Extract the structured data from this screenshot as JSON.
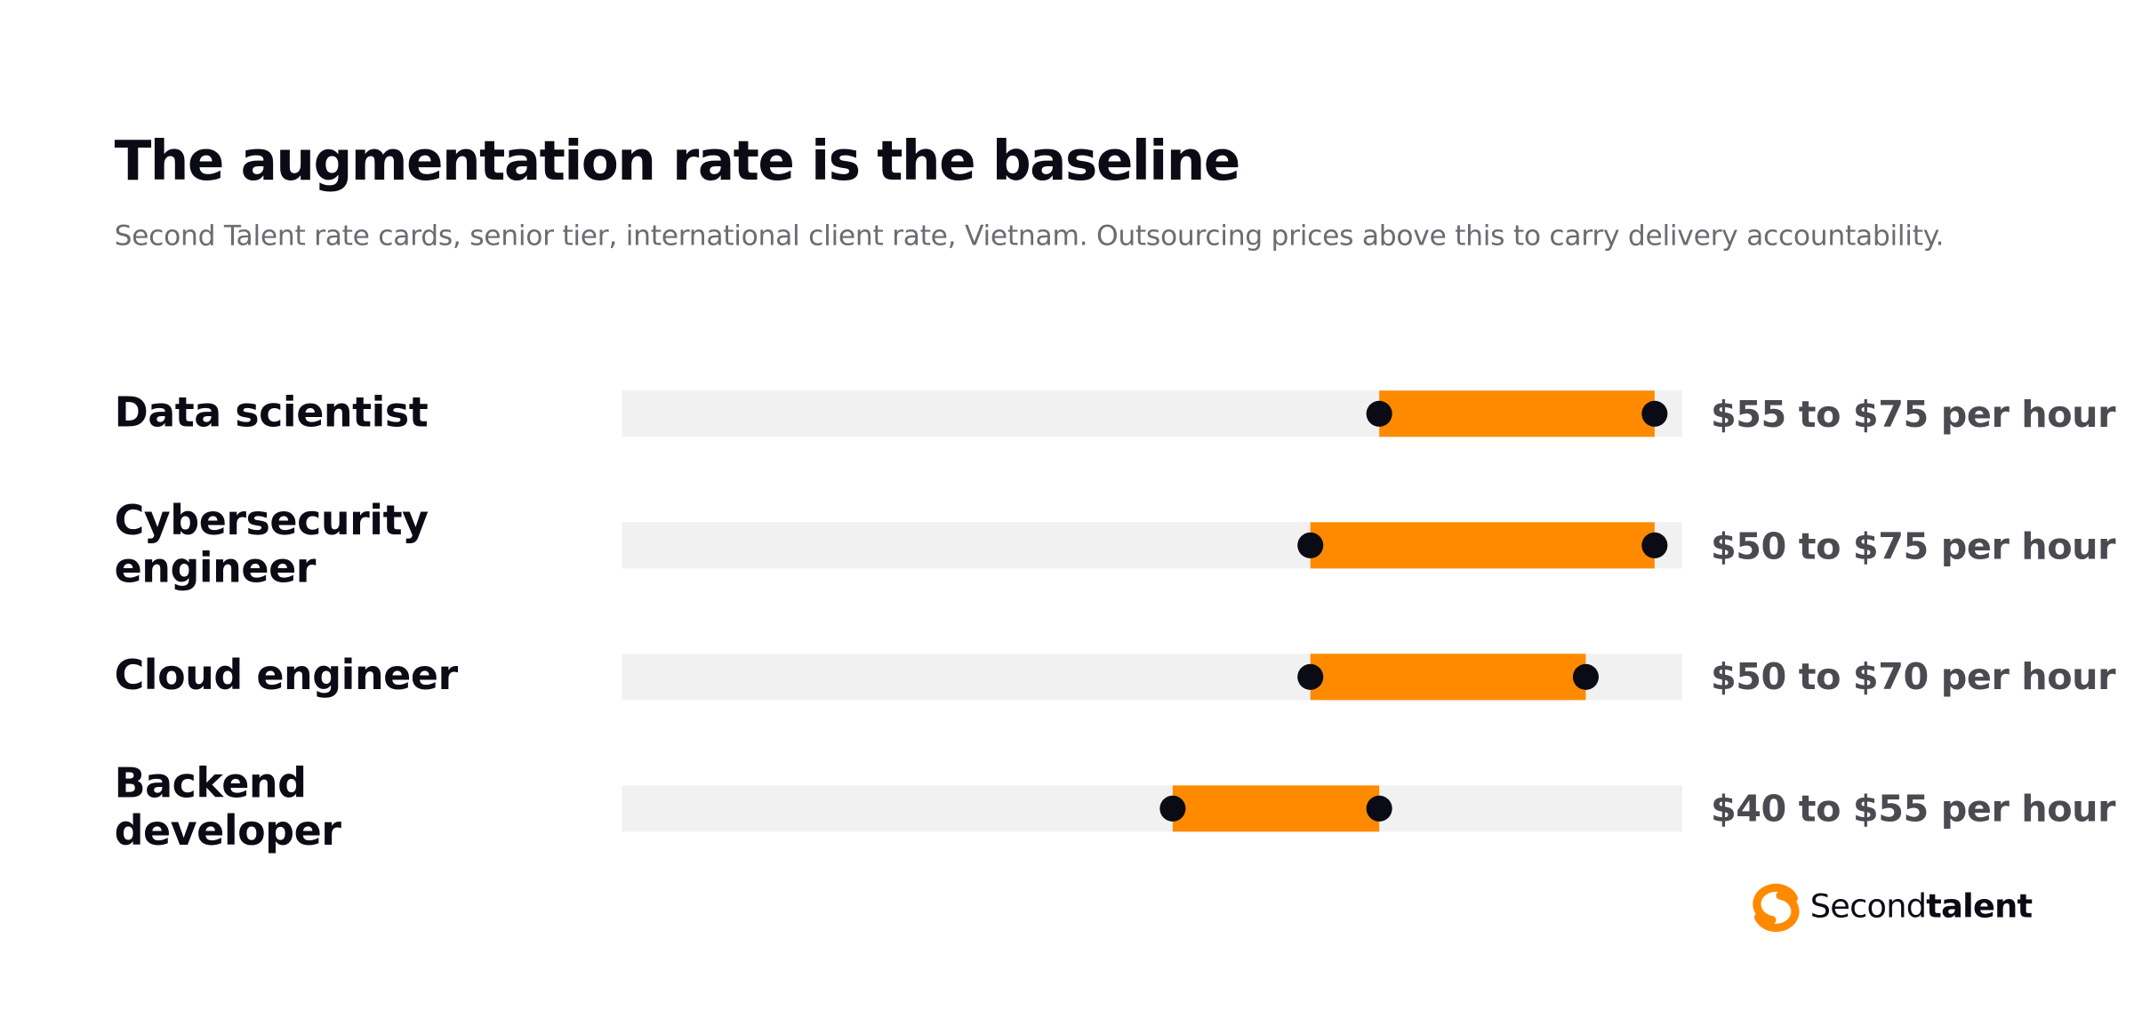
{
  "chart_data": {
    "type": "range",
    "title": "The augmentation rate is the baseline",
    "subtitle": "Second Talent rate cards, senior tier, international client rate, Vietnam. Outsourcing prices above this to carry delivery accountability.",
    "categories": [
      "Data scientist",
      "Cybersecurity engineer",
      "Cloud engineer",
      "Backend developer"
    ],
    "low": [
      55,
      50,
      50,
      40
    ],
    "high": [
      75,
      75,
      70,
      55
    ],
    "value_labels": [
      "$55 to $75 per hour",
      "$50 to $75 per hour",
      "$50 to $70 per hour",
      "$40 to $55 per hour"
    ],
    "xlim": [
      0,
      77
    ],
    "color": "#ff8a00",
    "dot_color": "#0b0b16",
    "track_color": "#f0f1f0"
  },
  "brand": {
    "name_light": "Second",
    "name_bold": "talent"
  }
}
